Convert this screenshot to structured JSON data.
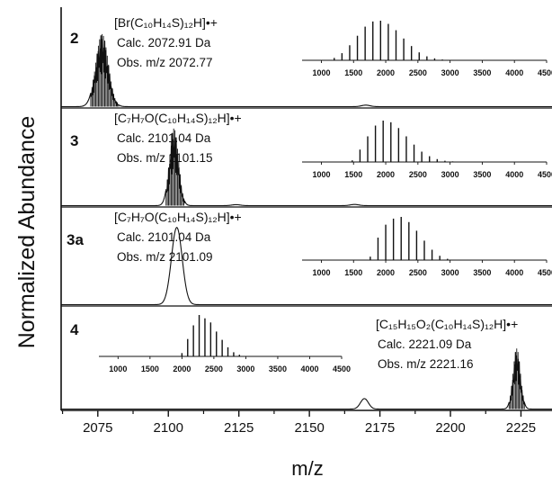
{
  "chart_data": {
    "type": "line",
    "ylabel": "Normalized Abundance",
    "xlabel": "m/z",
    "xlim": [
      2062,
      2236
    ],
    "xticks": [
      2075,
      2100,
      2125,
      2150,
      2175,
      2200,
      2225
    ],
    "panels": [
      {
        "id": "2",
        "formula": "[Br(C₁₀H₁₄S)₁₂H]•+",
        "calc": "Calc. 2072.91 Da",
        "obs": "Obs. m/z 2072.77",
        "peaks": [
          {
            "center": 2076.5,
            "width": 2.2,
            "height": 0.72
          },
          {
            "center": 2170,
            "width": 1.5,
            "height": 0.015
          }
        ],
        "comb": {
          "start": 2072.5,
          "end": 2082.5,
          "spacing": 0.45
        },
        "inset": {
          "xlim": [
            700,
            4500
          ],
          "xticks": [
            1000,
            1500,
            2000,
            2500,
            3000,
            3500,
            4000,
            4500
          ],
          "x": [
            1200,
            1320,
            1440,
            1560,
            1680,
            1800,
            1920,
            2040,
            2160,
            2280,
            2400,
            2520,
            2640,
            2760,
            2880
          ],
          "y": [
            0.06,
            0.18,
            0.38,
            0.62,
            0.85,
            0.98,
            1.0,
            0.92,
            0.76,
            0.55,
            0.36,
            0.2,
            0.1,
            0.05,
            0.02
          ]
        }
      },
      {
        "id": "3",
        "formula": "[C₇H₇O(C₁₀H₁₄S)₁₂H]•+",
        "calc": "Calc. 2101.04 Da",
        "obs": "Obs. m/z 2101.15",
        "peaks": [
          {
            "center": 2102,
            "width": 1.6,
            "height": 0.78
          },
          {
            "center": 2166,
            "width": 1.5,
            "height": 0.012
          },
          {
            "center": 2124,
            "width": 1.5,
            "height": 0.01
          }
        ],
        "comb": {
          "start": 2099.2,
          "end": 2105.8,
          "spacing": 0.45
        },
        "inset": {
          "xlim": [
            700,
            4500
          ],
          "xticks": [
            1000,
            1500,
            2000,
            2500,
            3000,
            3500,
            4000,
            4500
          ],
          "x": [
            1480,
            1600,
            1720,
            1840,
            1960,
            2080,
            2200,
            2320,
            2440,
            2560,
            2680,
            2800,
            2920,
            3040
          ],
          "y": [
            0.04,
            0.3,
            0.62,
            0.88,
            1.0,
            0.96,
            0.82,
            0.62,
            0.42,
            0.25,
            0.14,
            0.07,
            0.03,
            0.015
          ]
        }
      },
      {
        "id": "3a",
        "formula": "[C₇H₇O(C₁₀H₁₄S)₁₂H]•+",
        "calc": "Calc. 2101.04 Da",
        "obs": "Obs. m/z 2101.09",
        "peaks": [
          {
            "center": 2103,
            "width": 1.9,
            "height": 0.78
          }
        ],
        "comb": null,
        "inset": {
          "xlim": [
            700,
            4500
          ],
          "xticks": [
            1000,
            1500,
            2000,
            2500,
            3000,
            3500,
            4000,
            4500
          ],
          "x": [
            1760,
            1880,
            2000,
            2120,
            2240,
            2360,
            2480,
            2600,
            2720,
            2840,
            2960
          ],
          "y": [
            0.08,
            0.52,
            0.82,
            0.96,
            1.0,
            0.88,
            0.68,
            0.45,
            0.24,
            0.1,
            0.03
          ]
        }
      },
      {
        "id": "4",
        "formula": "[C₁₅H₁₅O₂(C₁₀H₁₄S)₁₂H]•+",
        "calc": "Calc. 2221.09 Da",
        "obs": "Obs. m/z 2221.16",
        "peaks": [
          {
            "center": 2223.5,
            "width": 1.3,
            "height": 0.58
          },
          {
            "center": 2169.5,
            "width": 1.4,
            "height": 0.1
          }
        ],
        "comb": {
          "start": 2220.8,
          "end": 2226.2,
          "spacing": 0.45
        },
        "inset": {
          "xlim": [
            700,
            4500
          ],
          "xticks": [
            1000,
            1500,
            2000,
            2500,
            3000,
            3500,
            4000,
            4500
          ],
          "x": [
            2000,
            2090,
            2180,
            2270,
            2360,
            2450,
            2540,
            2630,
            2720,
            2810,
            2900
          ],
          "y": [
            0.08,
            0.42,
            0.75,
            1.0,
            0.92,
            0.82,
            0.6,
            0.4,
            0.22,
            0.1,
            0.04
          ]
        }
      }
    ]
  }
}
